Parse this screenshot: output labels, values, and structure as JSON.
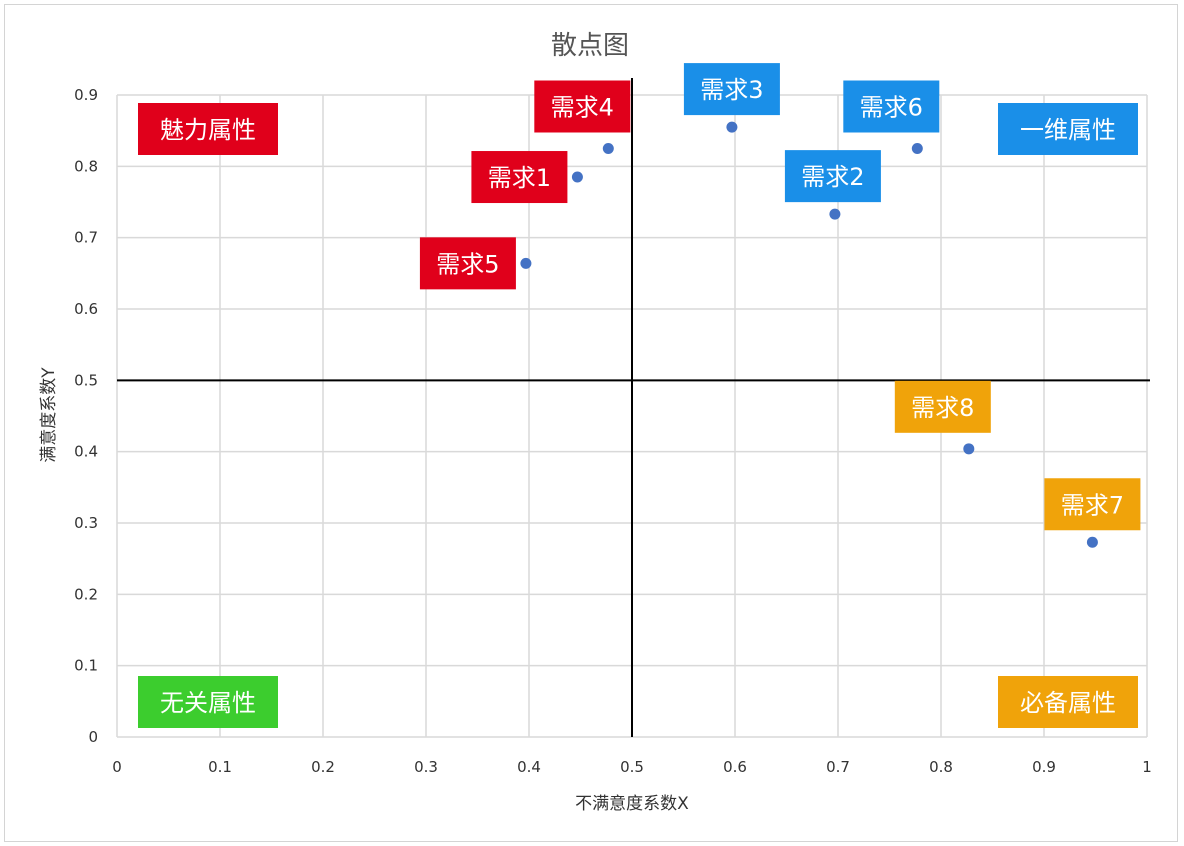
{
  "chart_data": {
    "type": "scatter",
    "title": "散点图",
    "xlabel": "不满意度系数X",
    "ylabel": "满意度系数Y",
    "xlim": [
      0,
      1
    ],
    "ylim": [
      0,
      0.9
    ],
    "x_ticks": [
      "0",
      "0.1",
      "0.2",
      "0.3",
      "0.4",
      "0.5",
      "0.6",
      "0.7",
      "0.8",
      "0.9",
      "1"
    ],
    "y_ticks": [
      "0",
      "0.1",
      "0.2",
      "0.3",
      "0.4",
      "0.5",
      "0.6",
      "0.7",
      "0.8",
      "0.9"
    ],
    "grid": true,
    "reference_lines": {
      "x": 0.5,
      "y": 0.5
    },
    "marker_color": "#4472c4",
    "points": [
      {
        "label": "需求1",
        "x": 0.447,
        "y": 0.785,
        "color": "#e0001b",
        "side": "left"
      },
      {
        "label": "需求2",
        "x": 0.697,
        "y": 0.733,
        "color": "#1a8fe8",
        "side": "above-right"
      },
      {
        "label": "需求3",
        "x": 0.597,
        "y": 0.855,
        "color": "#1a8fe8",
        "side": "above"
      },
      {
        "label": "需求4",
        "x": 0.477,
        "y": 0.825,
        "color": "#e0001b",
        "side": "above-left"
      },
      {
        "label": "需求5",
        "x": 0.397,
        "y": 0.664,
        "color": "#e0001b",
        "side": "left"
      },
      {
        "label": "需求6",
        "x": 0.777,
        "y": 0.825,
        "color": "#1a8fe8",
        "side": "above-left"
      },
      {
        "label": "需求7",
        "x": 0.947,
        "y": 0.273,
        "color": "#f0a30a",
        "side": "above"
      },
      {
        "label": "需求8",
        "x": 0.827,
        "y": 0.404,
        "color": "#f0a30a",
        "side": "above-left"
      }
    ],
    "quadrant_labels": [
      {
        "text": "魅力属性",
        "color": "#e0001b",
        "corner": "top-left"
      },
      {
        "text": "一维属性",
        "color": "#1a8fe8",
        "corner": "top-right"
      },
      {
        "text": "无关属性",
        "color": "#3ccd2e",
        "corner": "bottom-left"
      },
      {
        "text": "必备属性",
        "color": "#f0a30a",
        "corner": "bottom-right"
      }
    ]
  }
}
